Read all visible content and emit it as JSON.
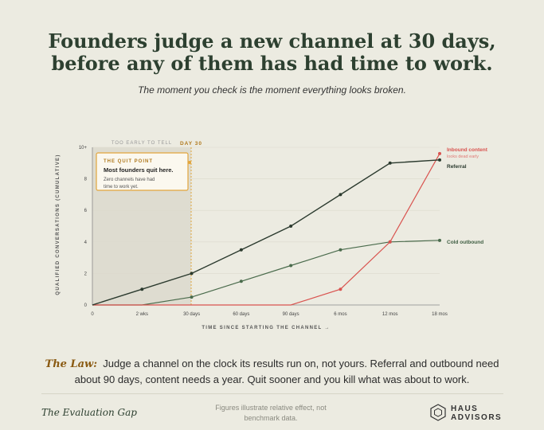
{
  "header": {
    "title_line1": "Founders judge a new channel at 30 days,",
    "title_line2": "before any of them has had time to work.",
    "subtitle": "The moment you check is the moment everything looks broken."
  },
  "chart_data": {
    "type": "line",
    "xlabel": "TIME SINCE STARTING THE CHANNEL →",
    "ylabel": "QUALIFIED CONVERSATIONS (CUMULATIVE)",
    "categories": [
      "0",
      "2 wks",
      "30 days",
      "60 days",
      "90 days",
      "6 mos",
      "12 mos",
      "18 mos"
    ],
    "y_ticks": [
      "0",
      "2",
      "4",
      "6",
      "8",
      "10+"
    ],
    "ylim": [
      0,
      10
    ],
    "grid": true,
    "series": [
      {
        "name": "Referral",
        "color": "#2b3a2e",
        "values": [
          0,
          1,
          2,
          3.5,
          5,
          7,
          9,
          9.2
        ]
      },
      {
        "name": "Cold outbound",
        "color": "#4a6b4c",
        "values": [
          0,
          0,
          0.5,
          1.5,
          2.5,
          3.5,
          4,
          4.1
        ]
      },
      {
        "name": "Inbound content",
        "sublabel": "looks dead early",
        "color": "#d9534f",
        "values": [
          0,
          0,
          0,
          0,
          0,
          1,
          4,
          9.6
        ]
      }
    ],
    "annotations": {
      "region_label": "TOO EARLY TO TELL",
      "marker_label": "DAY 30",
      "callout_kicker": "THE QUIT POINT",
      "callout_title": "Most founders quit here.",
      "callout_body_line1": "Zero channels have had",
      "callout_body_line2": "time to work yet."
    }
  },
  "law": {
    "label": "The Law:",
    "text": "Judge a channel on the clock its results run on, not yours. Referral and outbound need about 90 days, content needs a year. Quit sooner and you kill what was about to work."
  },
  "footer": {
    "left": "The Evaluation Gap",
    "middle_line1": "Figures illustrate relative effect, not",
    "middle_line2": "benchmark data.",
    "logo_line1": "HAUS",
    "logo_line2": "ADVISORS"
  }
}
